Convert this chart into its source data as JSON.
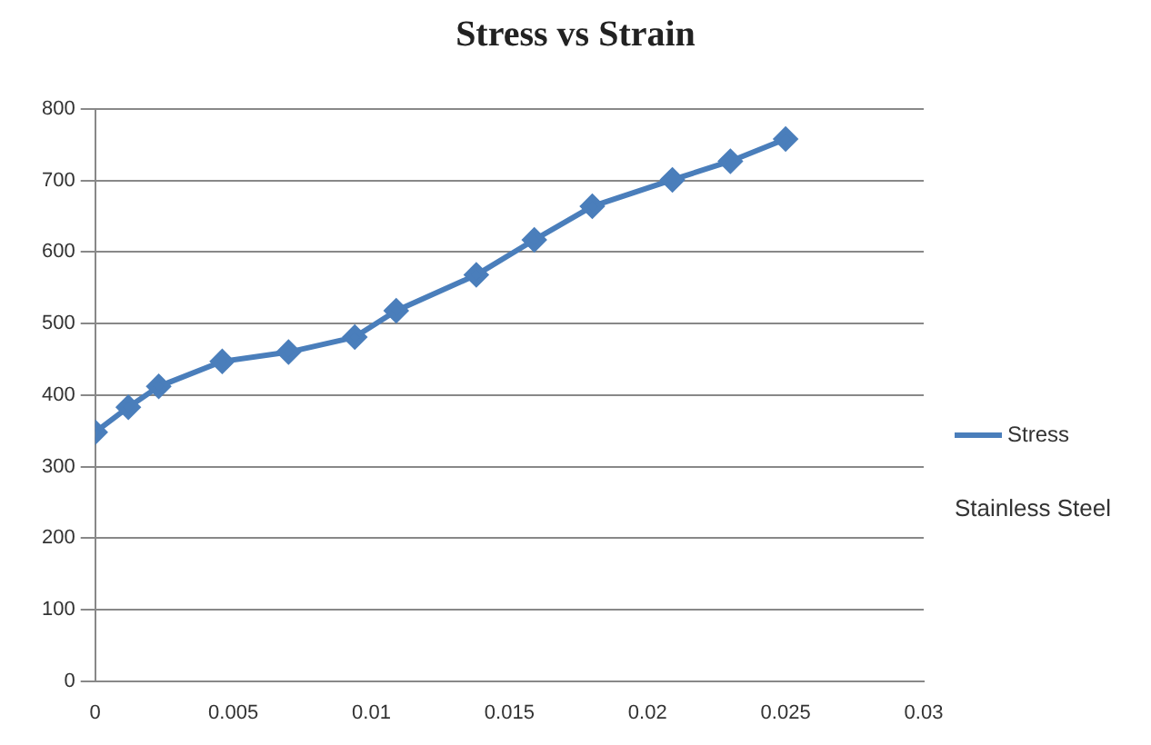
{
  "chart_data": {
    "type": "line",
    "title": "Stress vs Strain",
    "x": [
      0,
      0.0012,
      0.0023,
      0.0046,
      0.007,
      0.0094,
      0.0109,
      0.0138,
      0.0159,
      0.018,
      0.0209,
      0.023,
      0.025
    ],
    "series": [
      {
        "name": "Stress",
        "color": "#4a7ebb",
        "values": [
          348,
          383,
          412,
          447,
          460,
          481,
          518,
          568,
          617,
          664,
          701,
          727,
          758
        ]
      }
    ],
    "xlim": [
      0,
      0.03
    ],
    "xticks": [
      0,
      0.005,
      0.01,
      0.015,
      0.02,
      0.025,
      0.03
    ],
    "ylim": [
      0,
      800
    ],
    "yticks": [
      0,
      100,
      200,
      300,
      400,
      500,
      600,
      700,
      800
    ],
    "grid": "y",
    "legend": "right",
    "marker": "diamond",
    "line_style": "solid",
    "annotations": [
      "Stainless Steel"
    ]
  }
}
